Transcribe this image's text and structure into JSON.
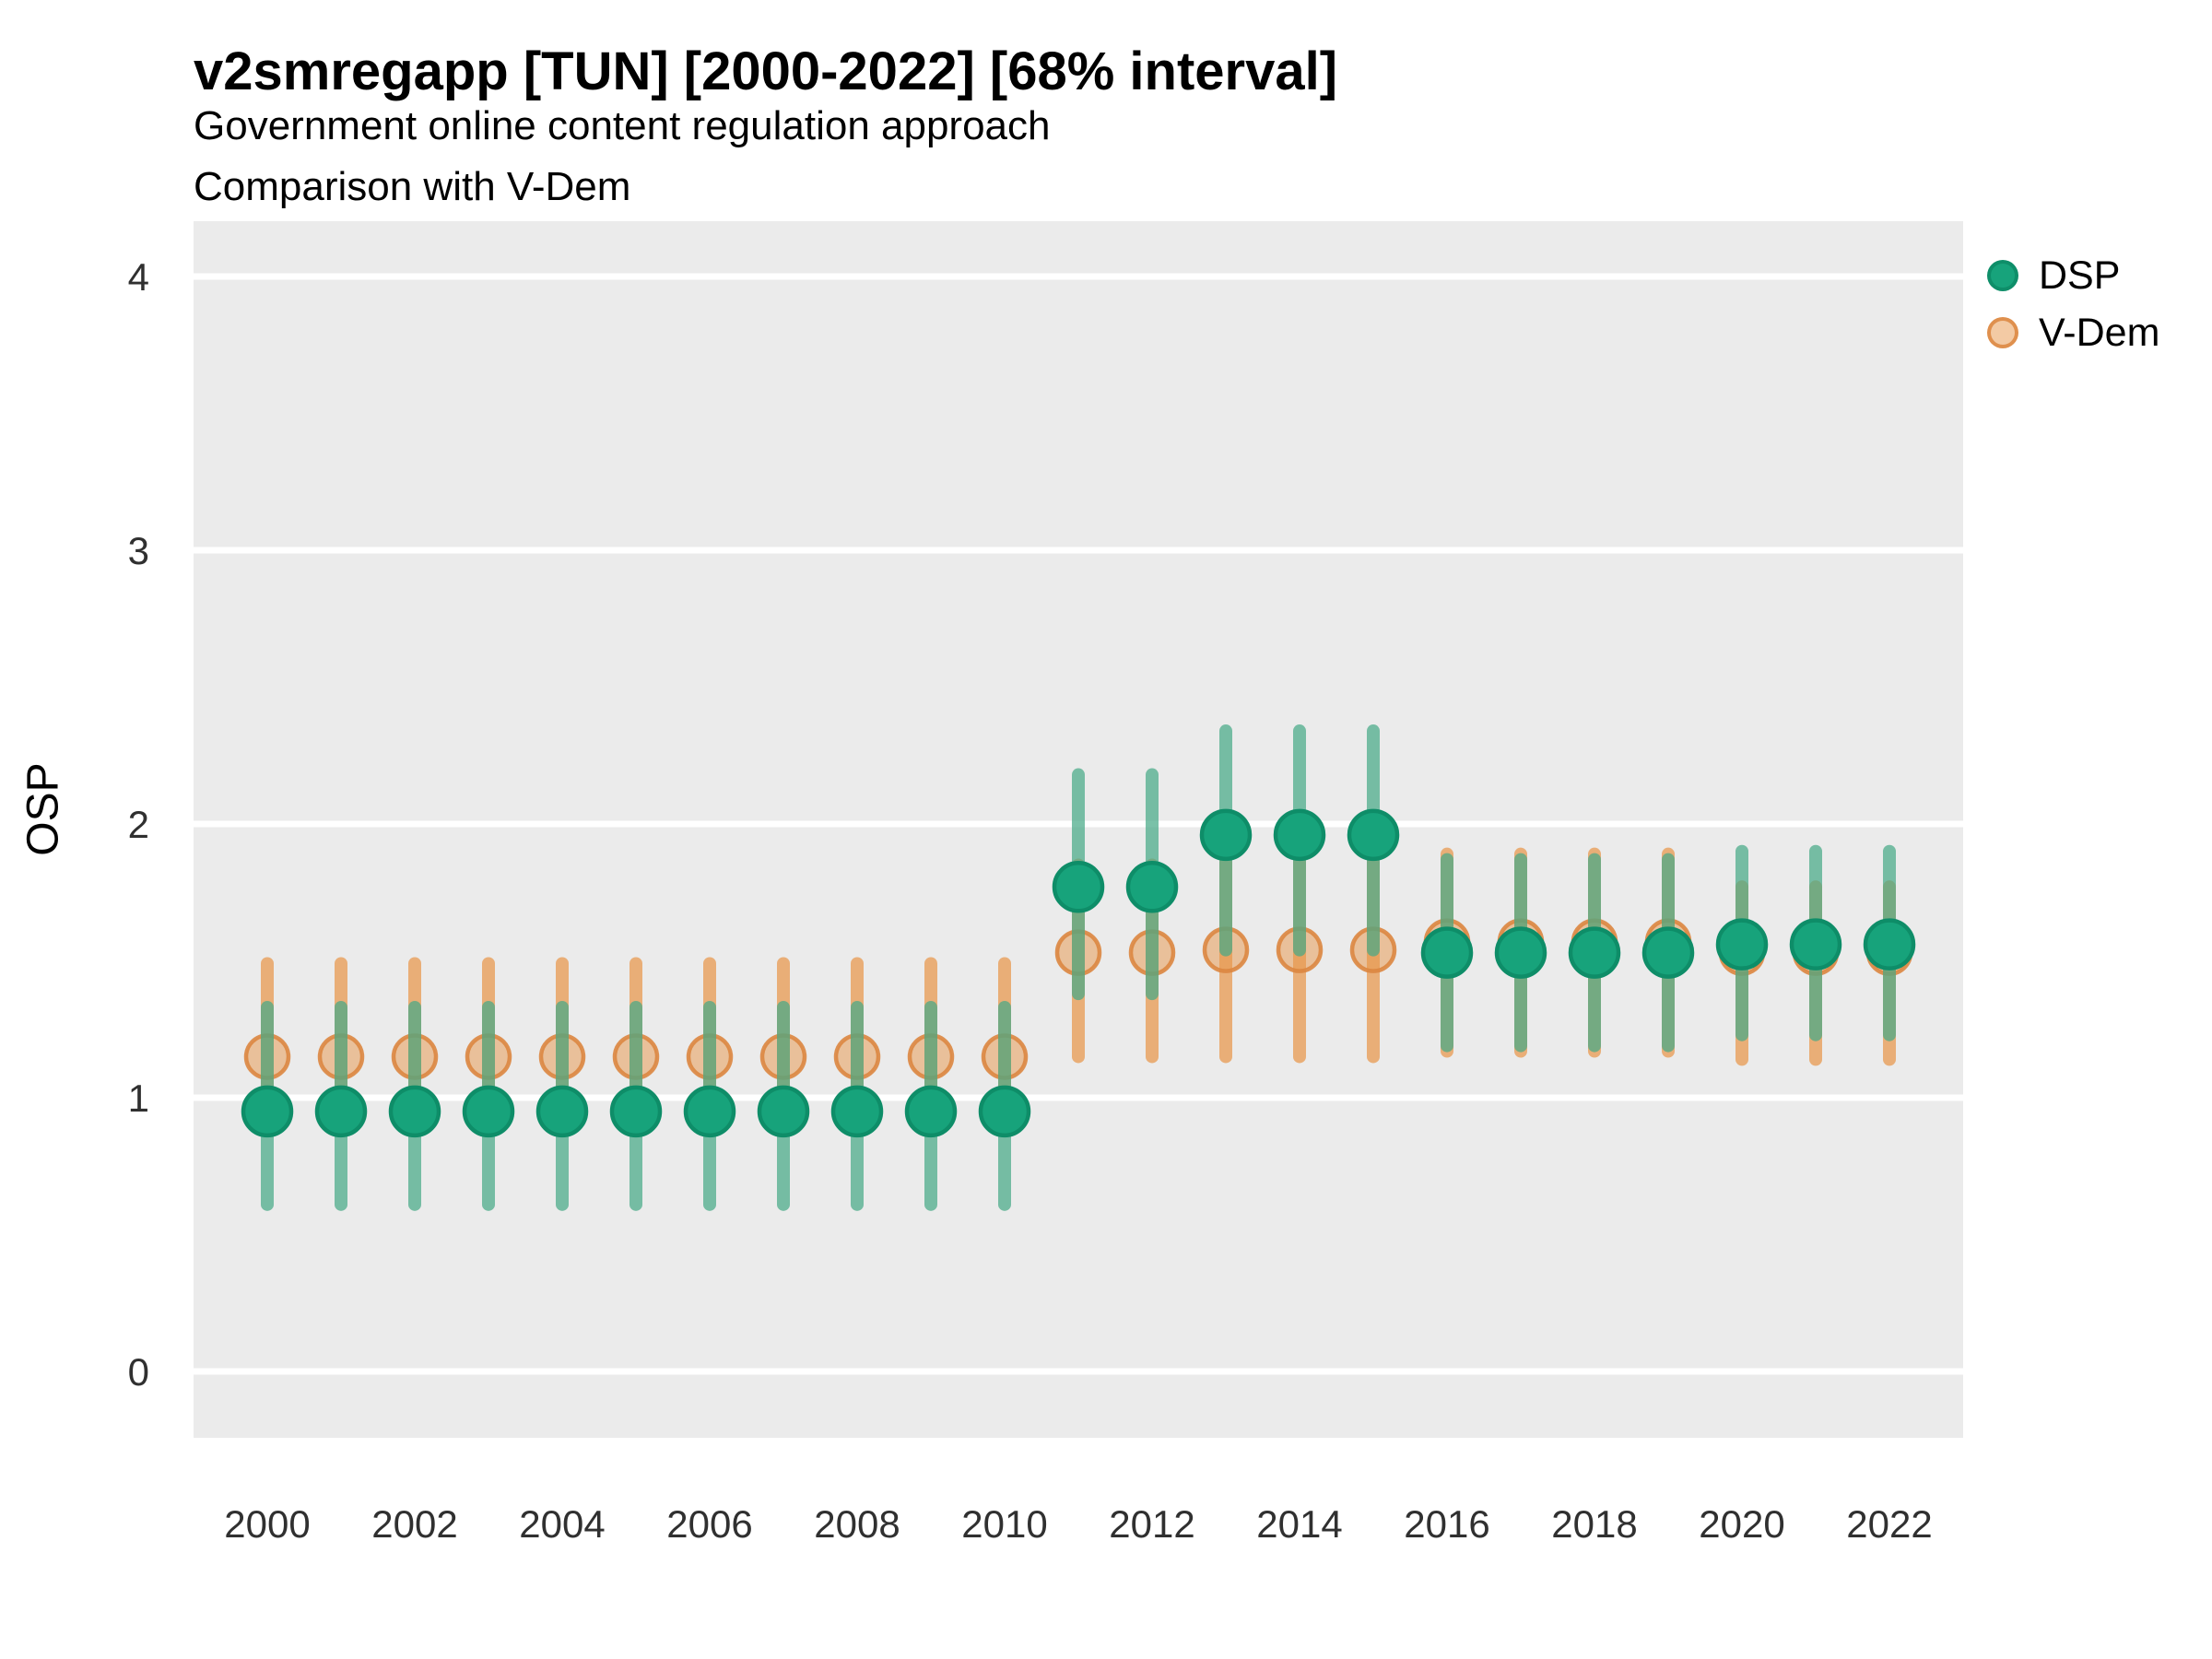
{
  "header": {
    "title": "v2smregapp [TUN] [2000-2022] [68% interval]",
    "subtitle1": "Government online content regulation approach",
    "subtitle2": "Comparison with V-Dem"
  },
  "y_axis_title": "OSP",
  "legend": {
    "position": "right",
    "items": [
      {
        "label": "DSP",
        "color": "#17A37B"
      },
      {
        "label": "V-Dem",
        "color": "#E8964A"
      }
    ]
  },
  "colors": {
    "panel_background": "#EBEBEB",
    "gridline": "#FFFFFF",
    "dsp_dot_fill": "#17A37B",
    "dsp_dot_stroke": "#0E8D68",
    "dsp_line": "#46A987",
    "vdem_dot_fill": "#E8964A",
    "vdem_dot_stroke": "#DC8640",
    "vdem_line": "#E8964A",
    "tick_label": "#303030"
  },
  "chart_data": {
    "type": "pointrange-scatter",
    "title": "v2smregapp [TUN] [2000-2022] [68% interval]",
    "subtitle": "Government online content regulation approach — Comparison with V-Dem",
    "xlabel": "",
    "ylabel": "OSP",
    "interval": "68%",
    "x": [
      2000,
      2001,
      2002,
      2003,
      2004,
      2005,
      2006,
      2007,
      2008,
      2009,
      2010,
      2011,
      2012,
      2013,
      2014,
      2015,
      2016,
      2017,
      2018,
      2019,
      2020,
      2021,
      2022
    ],
    "x_ticks": [
      2000,
      2002,
      2004,
      2006,
      2008,
      2010,
      2012,
      2014,
      2016,
      2018,
      2020,
      2022
    ],
    "y_ticks": [
      0,
      1,
      2,
      3,
      4
    ],
    "ylim": [
      -0.25,
      4.2
    ],
    "grid": "major horizontal white lines on grey panel",
    "legend_position": "right-top",
    "series": [
      {
        "name": "V-Dem",
        "values": [
          1.15,
          1.15,
          1.15,
          1.15,
          1.15,
          1.15,
          1.15,
          1.15,
          1.15,
          1.15,
          1.15,
          1.53,
          1.53,
          1.54,
          1.54,
          1.54,
          1.57,
          1.57,
          1.57,
          1.57,
          1.53,
          1.53,
          1.53
        ],
        "lower": [
          0.88,
          0.88,
          0.88,
          0.88,
          0.88,
          0.88,
          0.88,
          0.88,
          0.88,
          0.88,
          0.88,
          1.15,
          1.15,
          1.15,
          1.15,
          1.15,
          1.17,
          1.17,
          1.17,
          1.17,
          1.14,
          1.14,
          1.14
        ],
        "upper": [
          1.49,
          1.49,
          1.49,
          1.49,
          1.49,
          1.49,
          1.49,
          1.49,
          1.49,
          1.49,
          1.49,
          1.85,
          1.85,
          1.86,
          1.86,
          1.86,
          1.89,
          1.89,
          1.89,
          1.89,
          1.77,
          1.77,
          1.77
        ]
      },
      {
        "name": "DSP",
        "values": [
          0.95,
          0.95,
          0.95,
          0.95,
          0.95,
          0.95,
          0.95,
          0.95,
          0.95,
          0.95,
          0.95,
          1.77,
          1.77,
          1.96,
          1.96,
          1.96,
          1.53,
          1.53,
          1.53,
          1.53,
          1.56,
          1.56,
          1.56
        ],
        "lower": [
          0.61,
          0.61,
          0.61,
          0.61,
          0.61,
          0.61,
          0.61,
          0.61,
          0.61,
          0.61,
          0.61,
          1.38,
          1.38,
          1.54,
          1.54,
          1.54,
          1.19,
          1.19,
          1.19,
          1.19,
          1.23,
          1.23,
          1.23
        ],
        "upper": [
          1.33,
          1.33,
          1.33,
          1.33,
          1.33,
          1.33,
          1.33,
          1.33,
          1.33,
          1.33,
          1.33,
          2.18,
          2.18,
          2.34,
          2.34,
          2.34,
          1.87,
          1.87,
          1.87,
          1.87,
          1.9,
          1.9,
          1.9
        ]
      }
    ]
  }
}
